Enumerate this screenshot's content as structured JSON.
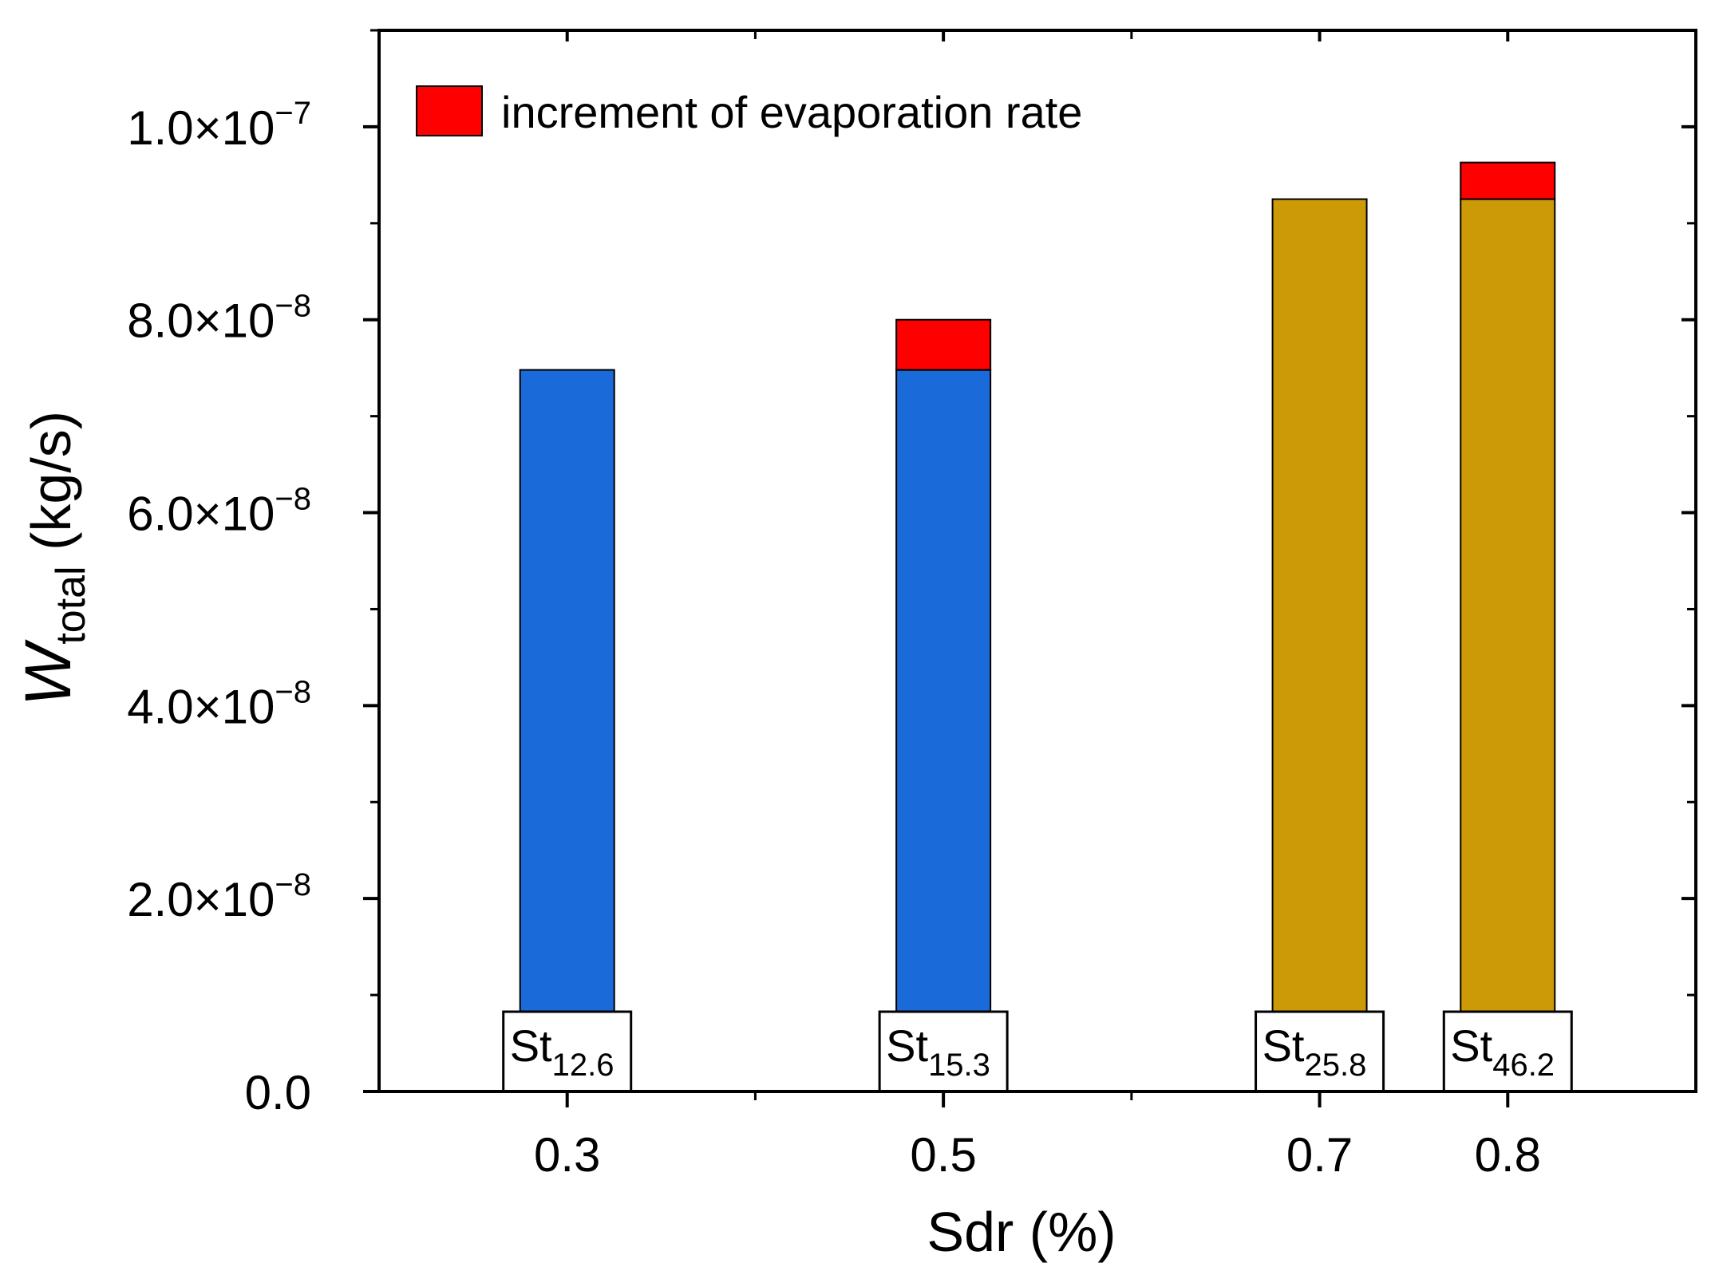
{
  "chart_data": {
    "type": "bar",
    "stacked": true,
    "categories": [
      "0.3",
      "0.5",
      "0.7",
      "0.8"
    ],
    "x": [
      0.3,
      0.5,
      0.7,
      0.8
    ],
    "xlim": [
      0.2,
      0.9
    ],
    "ylim": [
      0,
      1.1e-07
    ],
    "xlabel": "Sdr (%)",
    "ylabel_main": "W",
    "ylabel_sub": "total",
    "ylabel_unit": " (kg/s)",
    "yticks": [
      {
        "value": 0,
        "mantissa": "0.0",
        "exponent": ""
      },
      {
        "value": 2e-08,
        "mantissa": "2.0",
        "exponent": "−8"
      },
      {
        "value": 4e-08,
        "mantissa": "4.0",
        "exponent": "−8"
      },
      {
        "value": 6e-08,
        "mantissa": "6.0",
        "exponent": "−8"
      },
      {
        "value": 8e-08,
        "mantissa": "8.0",
        "exponent": "−8"
      },
      {
        "value": 1e-07,
        "mantissa": "1.0",
        "exponent": "−7"
      }
    ],
    "ytick_multiplier": "×10",
    "xtick_labels": [
      "0.3",
      "0.5",
      "0.7",
      "0.8"
    ],
    "bars": [
      {
        "x": 0.3,
        "base": 7.48e-08,
        "increment": 0,
        "color": "#1a6ad9",
        "label_main": "St",
        "label_sub": "12.6"
      },
      {
        "x": 0.5,
        "base": 7.48e-08,
        "increment": 5.2e-09,
        "color": "#1a6ad9",
        "label_main": "St",
        "label_sub": "15.3"
      },
      {
        "x": 0.7,
        "base": 9.25e-08,
        "increment": 0,
        "color": "#cc9a06",
        "label_main": "St",
        "label_sub": "25.8"
      },
      {
        "x": 0.8,
        "base": 9.25e-08,
        "increment": 3.8e-09,
        "color": "#cc9a06",
        "label_main": "St",
        "label_sub": "46.2"
      }
    ],
    "legend": {
      "placement": "top-left",
      "entries": [
        {
          "label": "increment of evaporation rate",
          "color": "#ff0000"
        }
      ]
    },
    "increment_color": "#ff0000"
  }
}
